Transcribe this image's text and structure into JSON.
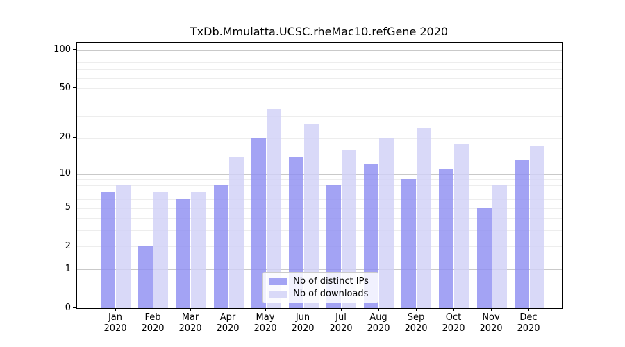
{
  "chart_data": {
    "type": "bar",
    "title": "TxDb.Mmulatta.UCSC.rheMac10.refGene 2020",
    "categories": [
      "Jan",
      "Feb",
      "Mar",
      "Apr",
      "May",
      "Jun",
      "Jul",
      "Aug",
      "Sep",
      "Oct",
      "Nov",
      "Dec"
    ],
    "category_year": "2020",
    "series": [
      {
        "name": "Nb of distinct IPs",
        "color": "#8f8ff2",
        "legend_color": "#a4a4f4",
        "values": [
          7,
          2,
          6,
          8,
          20,
          14,
          8,
          12,
          9,
          11,
          5,
          13
        ]
      },
      {
        "name": "Nb of downloads",
        "color": "#d1d1f6",
        "legend_color": "#d9d9f8",
        "values": [
          8,
          7,
          7,
          14,
          34,
          26,
          16,
          20,
          24,
          18,
          8,
          17
        ]
      }
    ],
    "yscale": "log1p",
    "ylim": [
      0,
      113
    ],
    "ytick_values": [
      0,
      1,
      2,
      5,
      10,
      20,
      50,
      100
    ],
    "ytick_labels": [
      "0",
      "1",
      "2",
      "5",
      "10",
      "20",
      "50",
      "100"
    ],
    "minor_gridline_values": [
      2,
      3,
      4,
      5,
      6,
      7,
      8,
      9,
      20,
      30,
      40,
      50,
      60,
      70,
      80,
      90
    ],
    "major_gridline_values": [
      1,
      10,
      100
    ],
    "grid": "on",
    "legend_position": "lower center",
    "xlabel": "",
    "ylabel": "",
    "colors": {
      "major_grid": "#c9c9c9",
      "minor_grid": "#ededed",
      "axis": "#000000",
      "background": "#ffffff"
    }
  }
}
